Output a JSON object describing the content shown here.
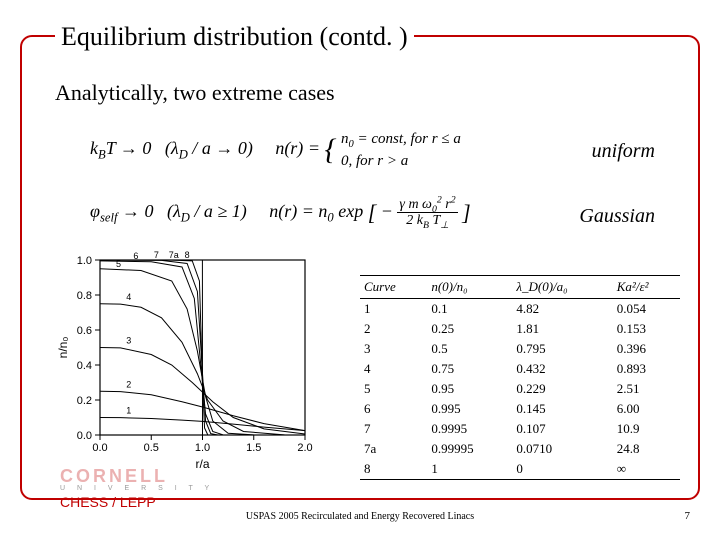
{
  "title": "Equilibrium distribution (contd. )",
  "subtitle": "Analytically, two extreme cases",
  "eq1_limit": "k B T → 0   (λ_D / a → 0)",
  "eq1_rhs_top": "n₀ = const, for r ≤ a",
  "eq1_rhs_bot": "0, for r > a",
  "eq1_label": "uniform",
  "eq2_limit": "φ_self → 0   (λ_D / a ≥ 1)",
  "eq2_rhs": "n(r) = n₀ exp[ − γ m ω₀² r² / (2 k_B T_⊥) ]",
  "eq2_label": "Gaussian",
  "chart": {
    "curves": [
      1,
      2,
      3,
      4,
      5,
      6,
      7,
      "7a",
      8
    ],
    "x_label": "r/a",
    "y_label": "n/n₀",
    "xlim": [
      0,
      2.0
    ],
    "ylim": [
      0,
      1.0
    ],
    "xticks": [
      0.0,
      0.5,
      1.0,
      1.5,
      2.0
    ],
    "yticks": [
      0.0,
      0.2,
      0.4,
      0.6,
      0.8,
      1.0
    ],
    "line_color": "#000000",
    "axis_color": "#000000",
    "background": "#ffffff",
    "curve_data": {
      "1": [
        [
          0,
          0.1
        ],
        [
          0.2,
          0.099
        ],
        [
          0.5,
          0.094
        ],
        [
          0.8,
          0.085
        ],
        [
          1.0,
          0.078
        ],
        [
          1.3,
          0.062
        ],
        [
          1.6,
          0.045
        ],
        [
          2.0,
          0.025
        ]
      ],
      "2": [
        [
          0,
          0.25
        ],
        [
          0.2,
          0.248
        ],
        [
          0.5,
          0.23
        ],
        [
          0.8,
          0.19
        ],
        [
          1.0,
          0.16
        ],
        [
          1.3,
          0.11
        ],
        [
          1.6,
          0.065
        ],
        [
          2.0,
          0.025
        ]
      ],
      "3": [
        [
          0,
          0.5
        ],
        [
          0.2,
          0.498
        ],
        [
          0.5,
          0.46
        ],
        [
          0.7,
          0.4
        ],
        [
          0.9,
          0.3
        ],
        [
          1.1,
          0.19
        ],
        [
          1.3,
          0.1
        ],
        [
          1.6,
          0.035
        ],
        [
          2.0,
          0.006
        ]
      ],
      "4": [
        [
          0,
          0.75
        ],
        [
          0.2,
          0.748
        ],
        [
          0.4,
          0.73
        ],
        [
          0.6,
          0.67
        ],
        [
          0.8,
          0.53
        ],
        [
          0.95,
          0.35
        ],
        [
          1.05,
          0.2
        ],
        [
          1.2,
          0.08
        ],
        [
          1.4,
          0.02
        ],
        [
          1.8,
          0.001
        ]
      ],
      "5": [
        [
          0,
          0.95
        ],
        [
          0.4,
          0.94
        ],
        [
          0.7,
          0.88
        ],
        [
          0.85,
          0.72
        ],
        [
          0.95,
          0.48
        ],
        [
          1.03,
          0.22
        ],
        [
          1.1,
          0.08
        ],
        [
          1.25,
          0.01
        ],
        [
          1.5,
          0.0005
        ]
      ],
      "6": [
        [
          0,
          0.995
        ],
        [
          0.5,
          0.99
        ],
        [
          0.8,
          0.96
        ],
        [
          0.92,
          0.78
        ],
        [
          0.98,
          0.42
        ],
        [
          1.03,
          0.12
        ],
        [
          1.1,
          0.02
        ],
        [
          1.2,
          0.001
        ]
      ],
      "7": [
        [
          0,
          0.9995
        ],
        [
          0.6,
          0.998
        ],
        [
          0.85,
          0.98
        ],
        [
          0.95,
          0.82
        ],
        [
          1.0,
          0.35
        ],
        [
          1.03,
          0.08
        ],
        [
          1.08,
          0.008
        ],
        [
          1.15,
          0.0002
        ]
      ],
      "7a": [
        [
          0,
          0.99995
        ],
        [
          0.7,
          0.9995
        ],
        [
          0.9,
          0.995
        ],
        [
          0.97,
          0.88
        ],
        [
          1.0,
          0.3
        ],
        [
          1.02,
          0.04
        ],
        [
          1.05,
          0.003
        ]
      ],
      "8": [
        [
          0,
          1.0
        ],
        [
          0.999,
          1.0
        ],
        [
          1.0,
          0.0
        ],
        [
          2.0,
          0.0
        ]
      ]
    }
  },
  "table": {
    "headers": [
      "Curve",
      "n(0)/n₀",
      "λ_D(0)/a₀",
      "Ka²/ε²"
    ],
    "rows": [
      [
        "1",
        "0.1",
        "4.82",
        "0.054"
      ],
      [
        "2",
        "0.25",
        "1.81",
        "0.153"
      ],
      [
        "3",
        "0.5",
        "0.795",
        "0.396"
      ],
      [
        "4",
        "0.75",
        "0.432",
        "0.893"
      ],
      [
        "5",
        "0.95",
        "0.229",
        "2.51"
      ],
      [
        "6",
        "0.995",
        "0.145",
        "6.00"
      ],
      [
        "7",
        "0.9995",
        "0.107",
        "10.9"
      ],
      [
        "7a",
        "0.99995",
        "0.0710",
        "24.8"
      ],
      [
        "8",
        "1",
        "0",
        "∞"
      ]
    ]
  },
  "logo": {
    "cornell": "CORNELL",
    "university": "U N I V E R S I T Y",
    "chess": "CHESS / LEPP"
  },
  "footer": "USPAS 2005 Recirculated and Energy Recovered Linacs",
  "page": "7",
  "colors": {
    "border": "#c00000",
    "text": "#000000",
    "background": "#ffffff"
  }
}
